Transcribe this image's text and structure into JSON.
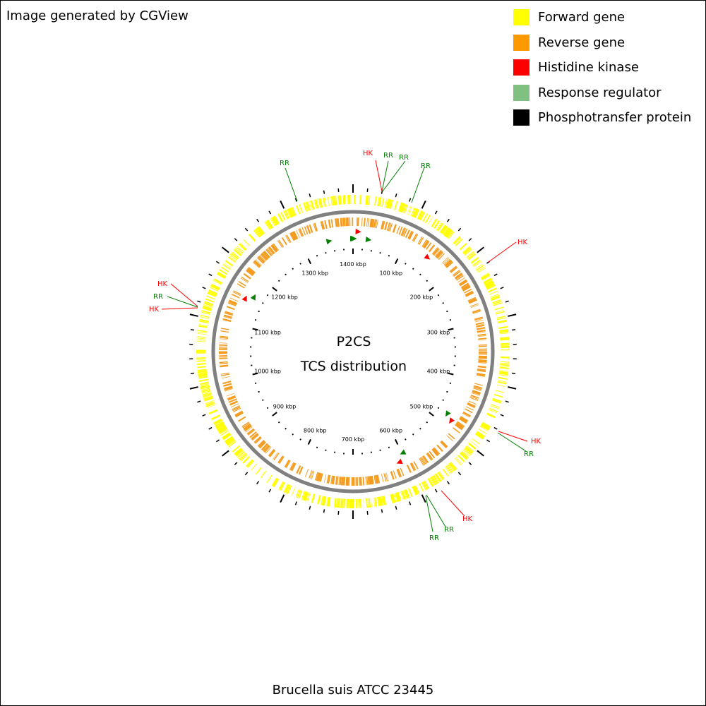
{
  "credit": "Image generated by CGView",
  "legend": [
    {
      "label": "Forward gene",
      "color": "#ffff00"
    },
    {
      "label": "Reverse gene",
      "color": "#ff9900"
    },
    {
      "label": "Histidine kinase",
      "color": "#ff0000"
    },
    {
      "label": "Response regulator",
      "color": "#80c080"
    },
    {
      "label": "Phosphotransfer protein",
      "color": "#000000"
    }
  ],
  "center": {
    "line1": "P2CS",
    "line2": "TCS distribution"
  },
  "organism": "Brucella suis ATCC 23445",
  "colors": {
    "forward": "#ffff00",
    "reverse": "#f39c1f",
    "backbone": "#808080",
    "hk": "#ff0000",
    "rr": "#008000",
    "tick": "#000000"
  },
  "genome": {
    "length_kbp": 1400,
    "tick_labels": [
      "100 kbp",
      "200 kbp",
      "300 kbp",
      "400 kbp",
      "500 kbp",
      "600 kbp",
      "700 kbp",
      "800 kbp",
      "900 kbp",
      "1000 kbp",
      "1100 kbp",
      "1200 kbp",
      "1300 kbp",
      "1400 kbp"
    ],
    "label_kbp": [
      100,
      200,
      300,
      400,
      500,
      600,
      700,
      800,
      900,
      1000,
      1100,
      1200,
      1300,
      1400
    ]
  },
  "features": [
    {
      "type": "HK",
      "strand": "forward",
      "kbp": 9
    },
    {
      "type": "RR",
      "strand": "forward",
      "kbp": 10
    },
    {
      "type": "RR",
      "strand": "forward",
      "kbp": 12
    },
    {
      "type": "RR",
      "strand": "forward",
      "kbp": 30
    },
    {
      "type": "HK",
      "strand": "forward",
      "kbp": 168
    },
    {
      "type": "HK",
      "strand": "reverse",
      "kbp": 535
    },
    {
      "type": "RR",
      "strand": "reverse",
      "kbp": 530
    },
    {
      "type": "HK",
      "strand": "forward",
      "kbp": 597
    },
    {
      "type": "RR",
      "strand": "forward",
      "kbp": 623
    },
    {
      "type": "RR",
      "strand": "forward",
      "kbp": 628
    },
    {
      "type": "HK",
      "strand": "forward",
      "kbp": 1155
    },
    {
      "type": "RR",
      "strand": "forward",
      "kbp": 1158
    },
    {
      "type": "HK",
      "strand": "forward",
      "kbp": 1162
    },
    {
      "type": "RR",
      "strand": "forward",
      "kbp": 1344
    }
  ],
  "callouts": [
    {
      "text": "HK",
      "type": "HK"
    },
    {
      "text": "RR",
      "type": "RR"
    },
    {
      "text": "RR",
      "type": "RR"
    },
    {
      "text": "RR",
      "type": "RR"
    },
    {
      "text": "HK",
      "type": "HK"
    },
    {
      "text": "HK",
      "type": "HK"
    },
    {
      "text": "RR",
      "type": "RR"
    },
    {
      "text": "HK",
      "type": "HK"
    },
    {
      "text": "RR",
      "type": "RR"
    },
    {
      "text": "RR",
      "type": "RR"
    },
    {
      "text": "HK",
      "type": "HK"
    },
    {
      "text": "RR",
      "type": "RR"
    },
    {
      "text": "HK",
      "type": "HK"
    },
    {
      "text": "RR",
      "type": "RR"
    }
  ],
  "markers": [
    {
      "type": "HK",
      "kbp": 10
    },
    {
      "type": "RR",
      "kbp": 0
    },
    {
      "type": "RR",
      "kbp": 2
    },
    {
      "type": "RR",
      "kbp": 31
    },
    {
      "type": "RR",
      "kbp": 1353
    },
    {
      "type": "HK",
      "kbp": 150
    },
    {
      "type": "RR",
      "kbp": 481
    },
    {
      "type": "HK",
      "kbp": 488
    },
    {
      "type": "RR",
      "kbp": 599
    },
    {
      "type": "HK",
      "kbp": 612
    },
    {
      "type": "HK",
      "kbp": 1153
    },
    {
      "type": "RR",
      "kbp": 1163
    }
  ]
}
